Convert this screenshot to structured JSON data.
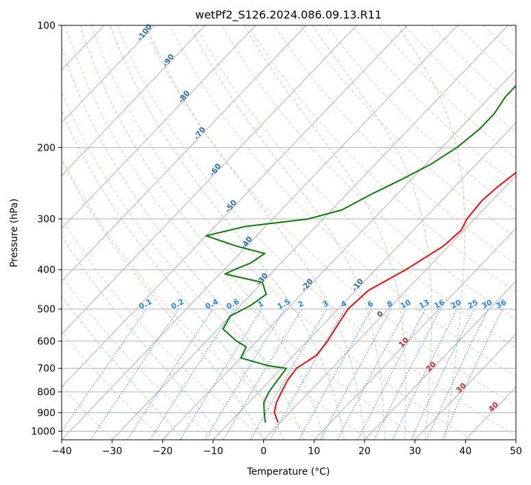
{
  "chart_data": {
    "type": "line",
    "title": "wetPf2_S126.2024.086.09.13.R11",
    "xlabel": "Temperature (°C)",
    "ylabel": "Pressure (hPa)",
    "xlim": [
      -40,
      50
    ],
    "ylim": [
      1050,
      100
    ],
    "y_scale": "log",
    "grid": true,
    "x_ticks": [
      -40,
      -30,
      -20,
      -10,
      0,
      10,
      20,
      30,
      40,
      50
    ],
    "x_tick_labels": [
      "−40",
      "−30",
      "−20",
      "−10",
      "0",
      "10",
      "20",
      "30",
      "40",
      "50"
    ],
    "y_ticks": [
      100,
      200,
      300,
      400,
      500,
      600,
      700,
      800,
      900,
      1000
    ],
    "y_tick_labels": [
      "100",
      "200",
      "300",
      "400",
      "500",
      "600",
      "700",
      "800",
      "900",
      "1000"
    ],
    "series": [
      {
        "color": "#ff0000",
        "points": [
          {
            "p": 950,
            "t": -0.5
          },
          {
            "p": 900,
            "t": -3
          },
          {
            "p": 850,
            "t": -4.5
          },
          {
            "p": 800,
            "t": -5.5
          },
          {
            "p": 750,
            "t": -6.5
          },
          {
            "p": 700,
            "t": -7
          },
          {
            "p": 650,
            "t": -5.5
          },
          {
            "p": 600,
            "t": -6
          },
          {
            "p": 550,
            "t": -7
          },
          {
            "p": 500,
            "t": -8
          },
          {
            "p": 450,
            "t": -7.5
          },
          {
            "p": 400,
            "t": -4
          },
          {
            "p": 350,
            "t": -1
          },
          {
            "p": 320,
            "t": -0.5
          },
          {
            "p": 300,
            "t": -1.5
          },
          {
            "p": 270,
            "t": -2
          },
          {
            "p": 250,
            "t": -1.5
          },
          {
            "p": 220,
            "t": 0
          },
          {
            "p": 200,
            "t": 2
          },
          {
            "p": 180,
            "t": 4
          },
          {
            "p": 160,
            "t": 5.5
          },
          {
            "p": 140,
            "t": 7
          },
          {
            "p": 125,
            "t": 8
          },
          {
            "p": 115,
            "t": 11
          },
          {
            "p": 108,
            "t": 13
          },
          {
            "p": 100,
            "t": 15
          }
        ]
      },
      {
        "color": "#008000",
        "points": [
          {
            "p": 950,
            "t": -3
          },
          {
            "p": 900,
            "t": -5
          },
          {
            "p": 850,
            "t": -7
          },
          {
            "p": 800,
            "t": -8
          },
          {
            "p": 750,
            "t": -8.5
          },
          {
            "p": 700,
            "t": -9
          },
          {
            "p": 690,
            "t": -13
          },
          {
            "p": 660,
            "t": -20
          },
          {
            "p": 620,
            "t": -21
          },
          {
            "p": 600,
            "t": -24
          },
          {
            "p": 560,
            "t": -29
          },
          {
            "p": 520,
            "t": -30
          },
          {
            "p": 490,
            "t": -28
          },
          {
            "p": 460,
            "t": -27
          },
          {
            "p": 430,
            "t": -30
          },
          {
            "p": 410,
            "t": -39
          },
          {
            "p": 400,
            "t": -38
          },
          {
            "p": 385,
            "t": -36
          },
          {
            "p": 365,
            "t": -35
          },
          {
            "p": 350,
            "t": -42
          },
          {
            "p": 330,
            "t": -50
          },
          {
            "p": 313,
            "t": -44
          },
          {
            "p": 300,
            "t": -33
          },
          {
            "p": 285,
            "t": -28
          },
          {
            "p": 260,
            "t": -25
          },
          {
            "p": 240,
            "t": -22
          },
          {
            "p": 220,
            "t": -19
          },
          {
            "p": 200,
            "t": -17
          },
          {
            "p": 180,
            "t": -16
          },
          {
            "p": 165,
            "t": -16
          },
          {
            "p": 150,
            "t": -17
          },
          {
            "p": 140,
            "t": -17
          },
          {
            "p": 130,
            "t": -16
          },
          {
            "p": 120,
            "t": -15
          },
          {
            "p": 110,
            "t": -14
          },
          {
            "p": 100,
            "t": -12
          }
        ]
      }
    ],
    "mixing_ratio_labels": [
      "0.1",
      "0.2",
      "0.4",
      "0.6",
      "1",
      "1.5",
      "2",
      "3",
      "4",
      "6",
      "8",
      "10",
      "13",
      "16",
      "20",
      "25",
      "30",
      "36"
    ],
    "dry_adiabat_labels": [
      "-100",
      "-90",
      "-80",
      "-70",
      "-60",
      "-50",
      "-40",
      "-30",
      "-20",
      "-10"
    ],
    "moist_adiabat_labels": [
      "0",
      "10",
      "20",
      "30",
      "40"
    ],
    "colors": {
      "temperature": "#ff0000",
      "dewpoint": "#008000",
      "isotherm": "#b0b0b0",
      "dry_adiabat": "#ffaa88",
      "moist_adiabat": "#88cc88",
      "mixing_ratio": "#2288ee",
      "dry_label": "#2a6fb0",
      "moist_label": "#d62728"
    }
  }
}
